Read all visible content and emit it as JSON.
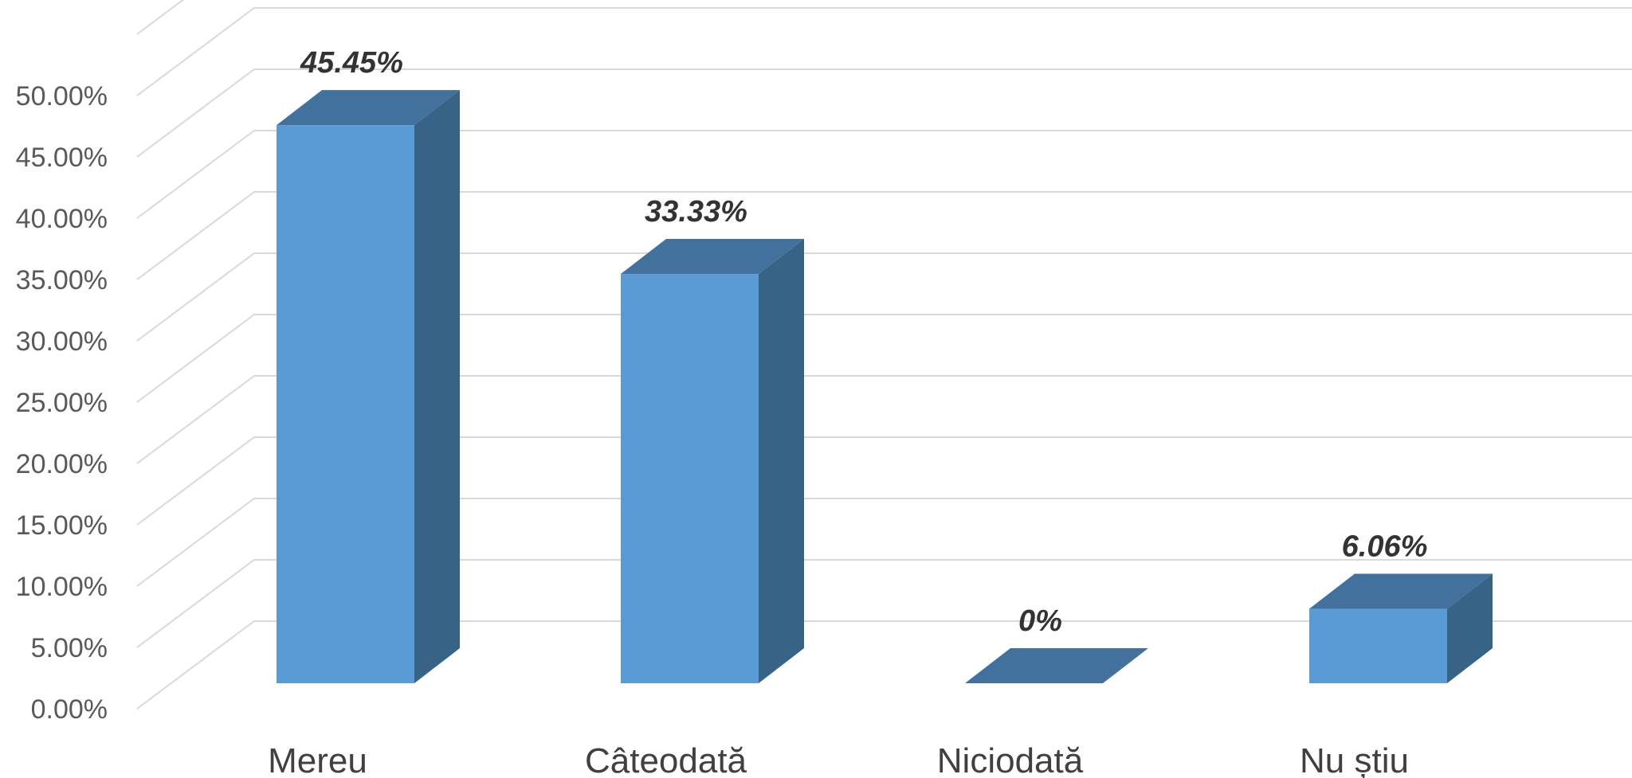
{
  "chart_data": {
    "type": "bar",
    "style": "3d-column",
    "title": "",
    "xlabel": "",
    "ylabel": "",
    "categories": [
      "Mereu",
      "Câteodată",
      "Niciodată",
      "Nu știu"
    ],
    "values": [
      45.45,
      33.33,
      0,
      6.06
    ],
    "data_labels": [
      "45.45%",
      "33.33%",
      "0%",
      "6.06%"
    ],
    "ylim": [
      0,
      50
    ],
    "y_ticks": [
      "0.00%",
      "5.00%",
      "10.00%",
      "15.00%",
      "20.00%",
      "25.00%",
      "30.00%",
      "35.00%",
      "40.00%",
      "45.00%",
      "50.00%"
    ],
    "grid": true,
    "legend": "none",
    "colors": {
      "front": "#5b9bd5",
      "top": "#41719c",
      "side": "#376386",
      "grid": "#d9d9d9",
      "tick_text": "#595959",
      "category_text": "#404040",
      "data_label_text": "#333333"
    }
  }
}
